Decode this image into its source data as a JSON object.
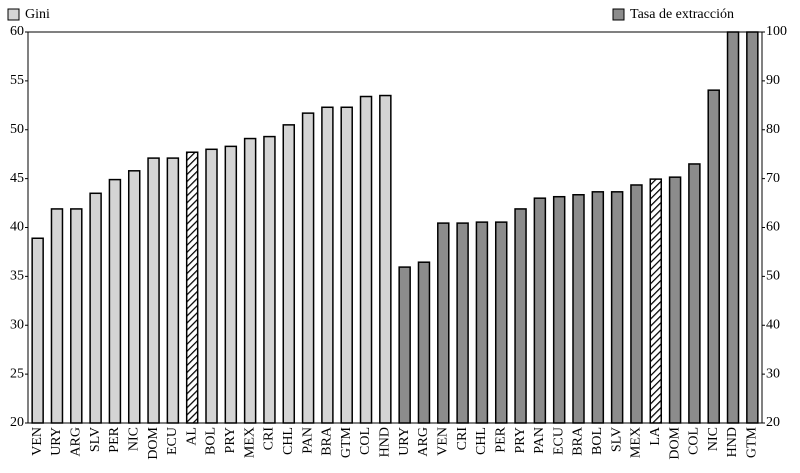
{
  "chart_data": {
    "type": "bar",
    "categories": [
      "VEN",
      "URY",
      "ARG",
      "SLV",
      "PER",
      "NIC",
      "DOM",
      "ECU",
      "AL",
      "BOL",
      "PRY",
      "MEX",
      "CRI",
      "CHL",
      "PAN",
      "BRA",
      "GTM",
      "COL",
      "HND",
      "URY",
      "ARG",
      "VEN",
      "CRI",
      "CHL",
      "PER",
      "PRY",
      "PAN",
      "ECU",
      "BRA",
      "BOL",
      "SLV",
      "MEX",
      "LA",
      "DOM",
      "COL",
      "NIC",
      "HND",
      "GTM"
    ],
    "series": [
      {
        "name": "Gini",
        "color": "#d4d4d4",
        "values": [
          38.9,
          41.9,
          41.9,
          43.5,
          44.9,
          45.8,
          47.1,
          47.1,
          47.7,
          48.0,
          48.3,
          49.1,
          49.3,
          50.5,
          51.7,
          52.3,
          52.3,
          53.4,
          53.5,
          null,
          null,
          null,
          null,
          null,
          null,
          null,
          null,
          null,
          null,
          null,
          null,
          null,
          null,
          null,
          null,
          null,
          null,
          null
        ]
      },
      {
        "name": "Tasa de extracción",
        "color": "#8c8c8c",
        "axis": "y2",
        "values": [
          null,
          null,
          null,
          null,
          null,
          null,
          null,
          null,
          null,
          null,
          null,
          null,
          null,
          null,
          null,
          null,
          null,
          null,
          null,
          51.9,
          52.9,
          60.9,
          60.9,
          61.1,
          61.1,
          63.8,
          66.0,
          66.3,
          66.7,
          67.3,
          67.3,
          68.7,
          69.9,
          70.3,
          73.0,
          88.1,
          100,
          100
        ]
      }
    ],
    "hatched": [
      "AL",
      "LA"
    ],
    "ylim": [
      20,
      60
    ],
    "yticks": [
      20,
      25,
      30,
      35,
      40,
      45,
      50,
      55,
      60
    ],
    "y2lim": [
      20,
      100
    ],
    "y2ticks": [
      20,
      30,
      40,
      50,
      60,
      70,
      80,
      90,
      100
    ],
    "grid": false
  }
}
